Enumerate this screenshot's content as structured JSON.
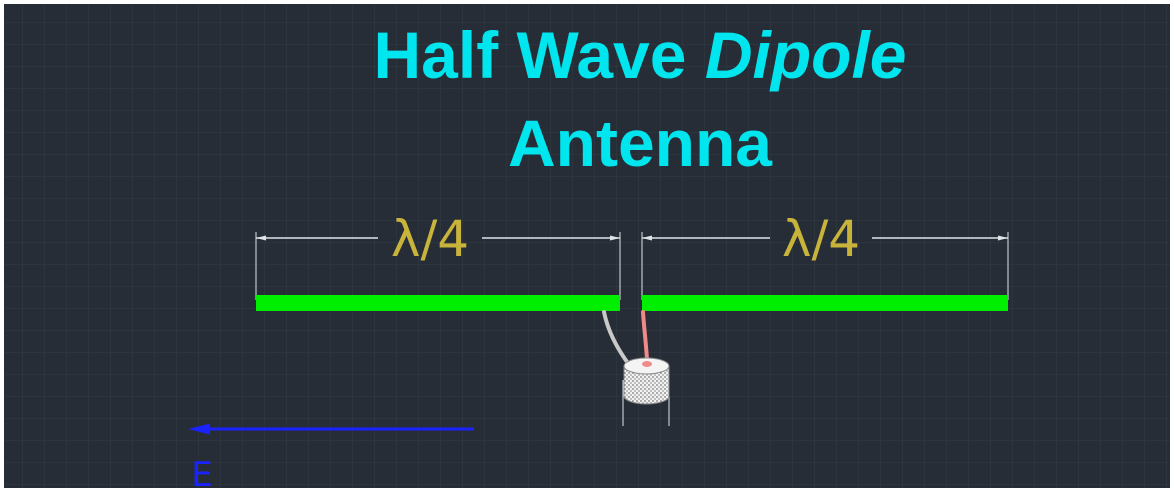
{
  "title": {
    "line1_prefix": "Half Wave ",
    "line1_italic": "Dipole",
    "line2": "Antenna"
  },
  "dimensions": {
    "left_label": "λ/4",
    "right_label": "λ/4"
  },
  "field": {
    "label": "E"
  },
  "colors": {
    "background": "#262d36",
    "grid": "#323b46",
    "title": "#00e5ee",
    "dimension_line": "#dfe3e8",
    "dimension_text": "#c8b43a",
    "element": "#00ee00",
    "coax_jacket": "#c9c9c9",
    "coax_center": "#f08a8a",
    "field_arrow": "#1a22ff"
  }
}
